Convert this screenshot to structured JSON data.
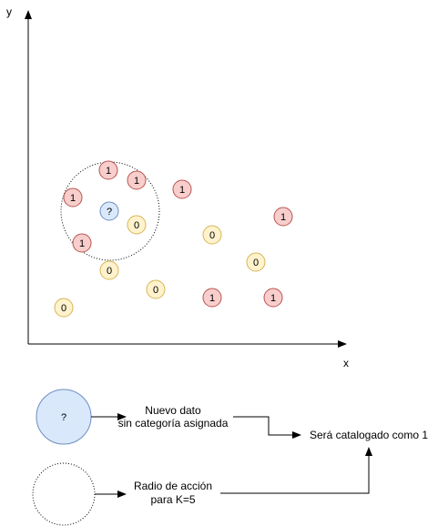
{
  "axes": {
    "x_label": "x",
    "y_label": "y"
  },
  "colors": {
    "class_1_fill": "#f8cecc",
    "class_1_stroke": "#b85450",
    "class_0_fill": "#fff2cc",
    "class_0_stroke": "#d6b656",
    "unknown_fill": "#dae8fc",
    "unknown_stroke": "#6c8ebf",
    "line": "#000000"
  },
  "points": [
    {
      "label": "1"
    },
    {
      "label": "1"
    },
    {
      "label": "1"
    },
    {
      "label": "1"
    },
    {
      "label": "1"
    },
    {
      "label": "1"
    },
    {
      "label": "1"
    },
    {
      "label": "1"
    },
    {
      "label": "0"
    },
    {
      "label": "0"
    },
    {
      "label": "0"
    },
    {
      "label": "0"
    },
    {
      "label": "0"
    },
    {
      "label": "0"
    }
  ],
  "new_point": {
    "label": "?"
  },
  "legend": {
    "new_point_symbol": "?",
    "new_point_text_line1": "Nuevo dato",
    "new_point_text_line2": "sin categoría asignada",
    "radius_text_line1": "Radio de acción",
    "radius_text_line2": "para K=5",
    "result_text": "Será catalogado como 1"
  }
}
